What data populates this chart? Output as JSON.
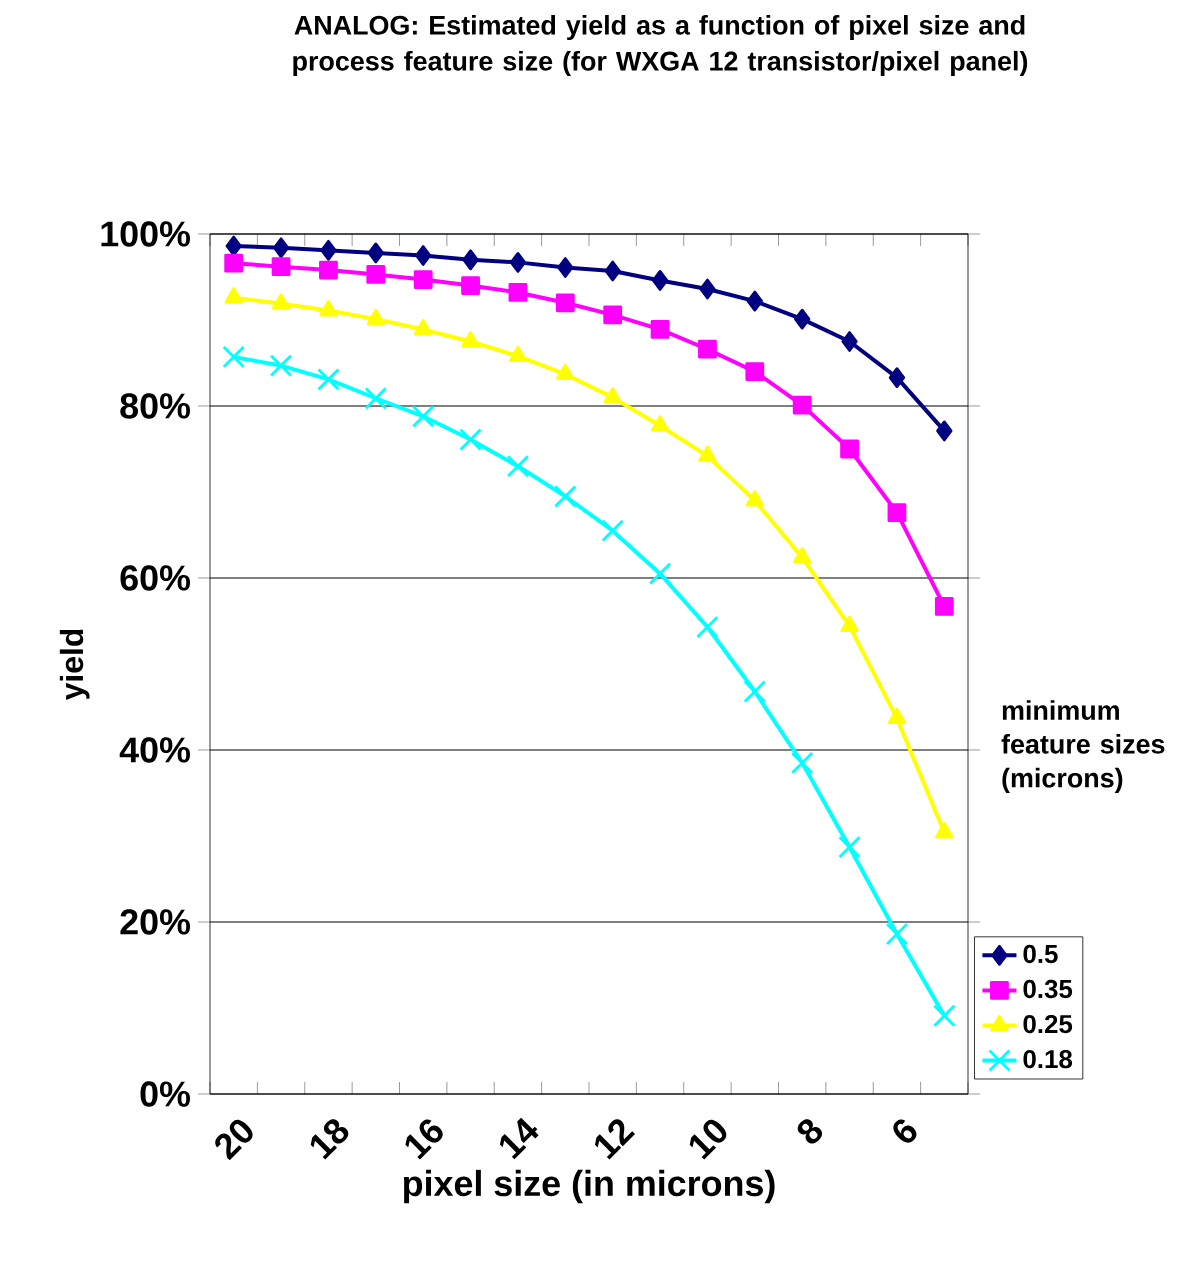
{
  "chart_data": {
    "type": "line",
    "title": "ANALOG: Estimated yield as a function of pixel size and process feature size (for WXGA 12 transistor/pixel panel)",
    "xlabel": "pixel size (in microns)",
    "ylabel": "yield",
    "legend_title": "minimum feature sizes (microns)",
    "categories": [
      "20",
      null,
      "18",
      null,
      "16",
      null,
      "14",
      null,
      "12",
      null,
      "10",
      null,
      "8",
      null,
      "6",
      null
    ],
    "series": [
      {
        "name": "0.5",
        "color": "#000080",
        "marker": "diamond",
        "values": [
          98.6,
          98.4,
          98.1,
          97.8,
          97.5,
          97.0,
          96.7,
          96.1,
          95.7,
          94.6,
          93.6,
          92.2,
          90.1,
          87.5,
          83.3,
          77.1
        ]
      },
      {
        "name": "0.35",
        "color": "#ff00ff",
        "marker": "square",
        "values": [
          96.6,
          96.2,
          95.8,
          95.3,
          94.7,
          94.0,
          93.2,
          92.0,
          90.6,
          88.9,
          86.6,
          84.0,
          80.1,
          75.0,
          67.6,
          56.7
        ]
      },
      {
        "name": "0.25",
        "color": "#ffff00",
        "marker": "triangle",
        "values": [
          92.6,
          91.9,
          91.1,
          90.1,
          88.9,
          87.5,
          85.8,
          83.7,
          81.0,
          77.7,
          74.2,
          69.0,
          62.4,
          54.4,
          43.7,
          30.4
        ]
      },
      {
        "name": "0.18",
        "color": "#00ffff",
        "marker": "cross",
        "values": [
          85.7,
          84.7,
          83.1,
          80.9,
          78.8,
          76.1,
          73.0,
          69.5,
          65.5,
          60.5,
          54.3,
          46.8,
          38.5,
          28.7,
          18.6,
          9.1
        ]
      }
    ],
    "ylim": [
      0,
      100
    ],
    "yticks": [
      {
        "value": 0,
        "label": "0%"
      },
      {
        "value": 20,
        "label": "20%"
      },
      {
        "value": 40,
        "label": "40%"
      },
      {
        "value": 60,
        "label": "60%"
      },
      {
        "value": 80,
        "label": "80%"
      },
      {
        "value": 100,
        "label": "100%"
      }
    ],
    "grid": "y",
    "legend": "right"
  }
}
